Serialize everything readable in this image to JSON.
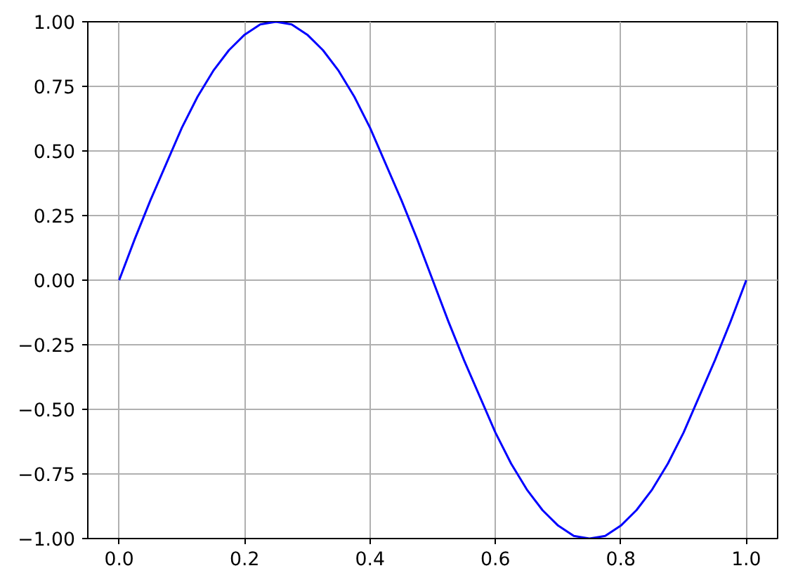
{
  "chart_data": {
    "type": "line",
    "x": [
      0,
      0.025,
      0.05,
      0.075,
      0.1,
      0.125,
      0.15,
      0.175,
      0.2,
      0.225,
      0.25,
      0.275,
      0.3,
      0.325,
      0.35,
      0.375,
      0.4,
      0.425,
      0.45,
      0.475,
      0.5,
      0.525,
      0.55,
      0.575,
      0.6,
      0.625,
      0.65,
      0.675,
      0.7,
      0.725,
      0.75,
      0.775,
      0.8,
      0.825,
      0.85,
      0.875,
      0.9,
      0.925,
      0.95,
      0.975,
      1
    ],
    "series": [
      {
        "color": "#0000ff",
        "values": [
          0,
          0.16,
          0.31,
          0.45,
          0.59,
          0.71,
          0.81,
          0.89,
          0.95,
          0.99,
          1,
          0.99,
          0.95,
          0.89,
          0.81,
          0.71,
          0.59,
          0.45,
          0.31,
          0.16,
          0,
          -0.16,
          -0.31,
          -0.45,
          -0.59,
          -0.71,
          -0.81,
          -0.89,
          -0.95,
          -0.99,
          -1,
          -0.99,
          -0.95,
          -0.89,
          -0.81,
          -0.71,
          -0.59,
          -0.45,
          -0.31,
          -0.16,
          0
        ]
      }
    ],
    "xlim": [
      -0.05,
      1.05
    ],
    "ylim": [
      -1,
      1
    ],
    "xticks": [
      {
        "value": 0,
        "label": "0.0"
      },
      {
        "value": 0.2,
        "label": "0.2"
      },
      {
        "value": 0.4,
        "label": "0.4"
      },
      {
        "value": 0.6,
        "label": "0.6"
      },
      {
        "value": 0.8,
        "label": "0.8"
      },
      {
        "value": 1,
        "label": "1.0"
      }
    ],
    "yticks": [
      {
        "value": -1,
        "label": "−1.00"
      },
      {
        "value": -0.75,
        "label": "−0.75"
      },
      {
        "value": -0.5,
        "label": "−0.50"
      },
      {
        "value": -0.25,
        "label": "−0.25"
      },
      {
        "value": 0,
        "label": "0.00"
      },
      {
        "value": 0.25,
        "label": "0.25"
      },
      {
        "value": 0.5,
        "label": "0.50"
      },
      {
        "value": 0.75,
        "label": "0.75"
      },
      {
        "value": 1,
        "label": "1.00"
      }
    ],
    "grid": true,
    "marker": "none",
    "line_style": "solid"
  }
}
